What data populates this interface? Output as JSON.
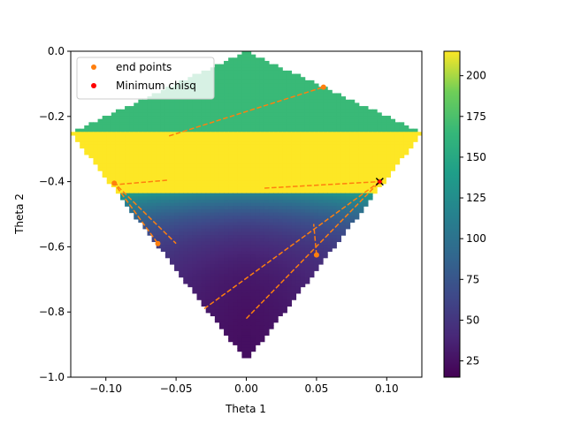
{
  "chart_data": {
    "type": "heatmap",
    "title": "",
    "xlabel": "Theta 1",
    "ylabel": "Theta 2",
    "xlim": [
      -0.125,
      0.125
    ],
    "ylim": [
      -1.0,
      0.0
    ],
    "xticks": [
      -0.1,
      -0.05,
      0.0,
      0.05,
      0.1
    ],
    "xtick_labels": [
      "−0.10",
      "−0.05",
      "0.00",
      "0.05",
      "0.10"
    ],
    "yticks": [
      0.0,
      -0.2,
      -0.4,
      -0.6,
      -0.8,
      -1.0
    ],
    "ytick_labels": [
      "0.0",
      "−0.2",
      "−0.4",
      "−0.6",
      "−0.8",
      "−1.0"
    ],
    "colormap": "viridis",
    "colorbar": {
      "range": [
        15,
        215
      ],
      "ticks": [
        25,
        50,
        75,
        100,
        125,
        150,
        175,
        200
      ],
      "tick_labels": [
        "25",
        "50",
        "75",
        "100",
        "125",
        "150",
        "175",
        "200"
      ]
    },
    "region": {
      "upper_apex": [
        0.0,
        0.0
      ],
      "band_y": -0.25,
      "band_half_width": 0.125,
      "lower_apex": [
        0.0,
        -0.95
      ]
    },
    "legend": {
      "position": "upper-left",
      "entries": [
        {
          "label": "end points",
          "color": "#ff7f0e"
        },
        {
          "label": "Minimum chisq",
          "color": "#ff0000"
        }
      ]
    },
    "paths": [
      {
        "points": [
          [
            -0.055,
            -0.26
          ],
          [
            0.055,
            -0.11
          ]
        ]
      },
      {
        "points": [
          [
            -0.095,
            -0.41
          ],
          [
            -0.055,
            -0.395
          ]
        ]
      },
      {
        "points": [
          [
            -0.095,
            -0.4
          ],
          [
            -0.05,
            -0.59
          ]
        ]
      },
      {
        "points": [
          [
            -0.095,
            -0.4
          ],
          [
            -0.063,
            -0.59
          ]
        ]
      },
      {
        "points": [
          [
            0.013,
            -0.42
          ],
          [
            0.095,
            -0.4
          ]
        ]
      },
      {
        "points": [
          [
            -0.03,
            -0.79
          ],
          [
            0.095,
            -0.4
          ]
        ]
      },
      {
        "points": [
          [
            0.0,
            -0.82
          ],
          [
            0.095,
            -0.4
          ]
        ]
      },
      {
        "points": [
          [
            0.05,
            -0.625
          ],
          [
            0.048,
            -0.53
          ]
        ]
      }
    ],
    "end_points": [
      [
        0.055,
        -0.11
      ],
      [
        -0.094,
        -0.405
      ],
      [
        -0.063,
        -0.59
      ],
      [
        0.05,
        -0.625
      ],
      [
        0.095,
        -0.4
      ]
    ],
    "minimum_chisq": [
      [
        0.095,
        -0.4
      ]
    ],
    "colors": {
      "path": "#ff7f0e",
      "end_point": "#ff7f0e",
      "minimum": "#ff0000"
    }
  }
}
